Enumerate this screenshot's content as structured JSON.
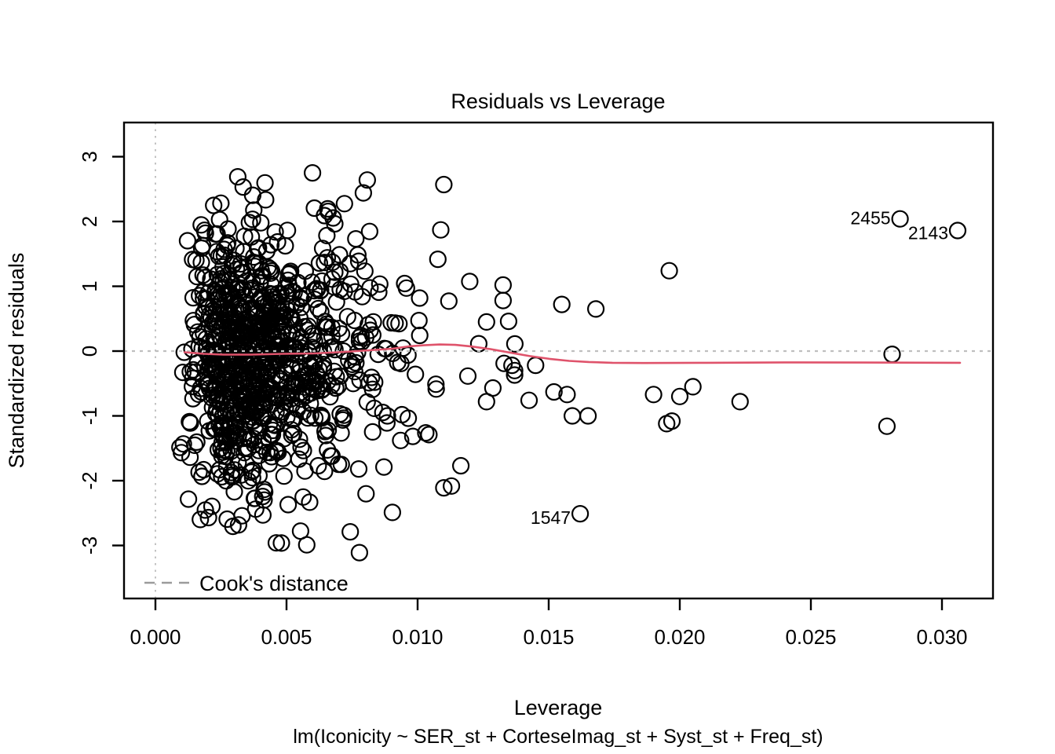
{
  "figure": {
    "title": "Residuals vs Leverage",
    "xlabel": "Leverage",
    "ylabel": "Standardized residuals",
    "subtitle": "lm(Iconicity ~ SER_st + CorteseImag_st + Syst_st + Freq_st)",
    "legend_label": "Cook's distance"
  },
  "chart_data": {
    "type": "scatter",
    "title": "Residuals vs Leverage",
    "xlabel": "Leverage",
    "ylabel": "Standardized residuals",
    "subtitle": "lm(Iconicity ~ SER_st + CorteseImag_st + Syst_st + Freq_st)",
    "xlim": [
      -0.0012,
      0.0319
    ],
    "ylim": [
      -3.8,
      3.53
    ],
    "grid": false,
    "x_ticks": [
      {
        "value": 0.0,
        "label": "0.000"
      },
      {
        "value": 0.005,
        "label": "0.005"
      },
      {
        "value": 0.01,
        "label": "0.010"
      },
      {
        "value": 0.015,
        "label": "0.015"
      },
      {
        "value": 0.02,
        "label": "0.020"
      },
      {
        "value": 0.025,
        "label": "0.025"
      },
      {
        "value": 0.03,
        "label": "0.030"
      }
    ],
    "y_ticks": [
      {
        "value": -3,
        "label": "-3"
      },
      {
        "value": -2,
        "label": "-2"
      },
      {
        "value": -1,
        "label": "-1"
      },
      {
        "value": 0,
        "label": "0"
      },
      {
        "value": 1,
        "label": "1"
      },
      {
        "value": 2,
        "label": "2"
      },
      {
        "value": 3,
        "label": "3"
      }
    ],
    "reference_lines": {
      "h_zero": {
        "y": 0,
        "style": "dotted",
        "color": "#bfbfbf"
      },
      "v_zero": {
        "x": 0,
        "style": "dotted",
        "color": "#c3c3c3"
      }
    },
    "legend": {
      "label": "Cook's distance",
      "line_style": "dashed",
      "color": "#9b9b9b",
      "position": "bottom-left"
    },
    "labeled_points": [
      {
        "id": "2455",
        "leverage": 0.0284,
        "std_residual": 2.04,
        "label_dy": 7
      },
      {
        "id": "2143",
        "leverage": 0.0306,
        "std_residual": 1.86,
        "label_dy": 11
      },
      {
        "id": "1547",
        "leverage": 0.0162,
        "std_residual": -2.51,
        "label_dy": 13
      }
    ],
    "extra_points": [
      [
        0.01287,
        -0.57
      ],
      [
        0.01263,
        -0.78
      ],
      [
        0.01326,
        1.02
      ],
      [
        0.01326,
        0.78
      ],
      [
        0.01263,
        0.45
      ],
      [
        0.01347,
        0.46
      ],
      [
        0.01371,
        0.11
      ],
      [
        0.0133,
        -0.19
      ],
      [
        0.0136,
        -0.22
      ],
      [
        0.0137,
        -0.3
      ],
      [
        0.0137,
        -0.37
      ],
      [
        0.0145,
        -0.22
      ],
      [
        0.01425,
        -0.76
      ],
      [
        0.0152,
        -0.63
      ],
      [
        0.0157,
        -0.67
      ],
      [
        0.0159,
        -1.0
      ],
      [
        0.0165,
        -1.0
      ],
      [
        0.0155,
        0.72
      ],
      [
        0.0168,
        0.65
      ],
      [
        0.0196,
        1.24
      ],
      [
        0.019,
        -0.67
      ],
      [
        0.02,
        -0.7
      ],
      [
        0.0205,
        -0.55
      ],
      [
        0.0195,
        -1.12
      ],
      [
        0.0197,
        -1.08
      ],
      [
        0.0223,
        -0.78
      ],
      [
        0.0281,
        -0.05
      ],
      [
        0.0279,
        -1.16
      ],
      [
        0.011,
        2.57
      ],
      [
        0.01165,
        -1.77
      ],
      [
        0.011,
        -2.11
      ],
      [
        0.00314,
        2.69
      ],
      [
        0.00599,
        2.75
      ],
      [
        0.00808,
        2.64
      ],
      [
        0.00461,
        -2.96
      ],
      [
        0.00778,
        -3.11
      ],
      [
        0.0041,
        -2.53
      ],
      [
        0.00904,
        -2.49
      ]
    ],
    "point_cloud": {
      "description": "dense cloud of open-circle points, approximated by seeded generator",
      "n": 915,
      "seed": 42,
      "x_log_mean": -5.55,
      "x_log_sd": 0.45,
      "x_min": 0.00085,
      "x_max": 0.0126,
      "y_mean": -0.12,
      "y_sd": 1.03,
      "y_min": -3.1,
      "y_max": 2.72
    },
    "smoother": {
      "name": "loess-smoother",
      "color": "#DF536B",
      "points": [
        [
          0.00111,
          -0.018
        ],
        [
          0.00186,
          -0.042
        ],
        [
          0.0026,
          -0.054
        ],
        [
          0.00365,
          -0.054
        ],
        [
          0.00485,
          -0.042
        ],
        [
          0.00605,
          -0.036
        ],
        [
          0.00724,
          -0.012
        ],
        [
          0.00814,
          0.012
        ],
        [
          0.00904,
          0.036
        ],
        [
          0.00964,
          0.072
        ],
        [
          0.01024,
          0.09
        ],
        [
          0.01084,
          0.102
        ],
        [
          0.01144,
          0.096
        ],
        [
          0.01204,
          0.072
        ],
        [
          0.01278,
          0.03
        ],
        [
          0.01353,
          -0.024
        ],
        [
          0.01428,
          -0.078
        ],
        [
          0.01503,
          -0.12
        ],
        [
          0.01578,
          -0.151
        ],
        [
          0.01653,
          -0.169
        ],
        [
          0.01743,
          -0.181
        ],
        [
          0.01862,
          -0.184
        ],
        [
          0.02102,
          -0.181
        ],
        [
          0.02401,
          -0.175
        ],
        [
          0.02701,
          -0.177
        ],
        [
          0.03069,
          -0.181
        ]
      ]
    },
    "colors": {
      "points": "#000000",
      "smoother": "#DF536B",
      "reference": "#c0c0c0",
      "legend_gray": "#9b9b9b",
      "box": "#000000"
    }
  }
}
